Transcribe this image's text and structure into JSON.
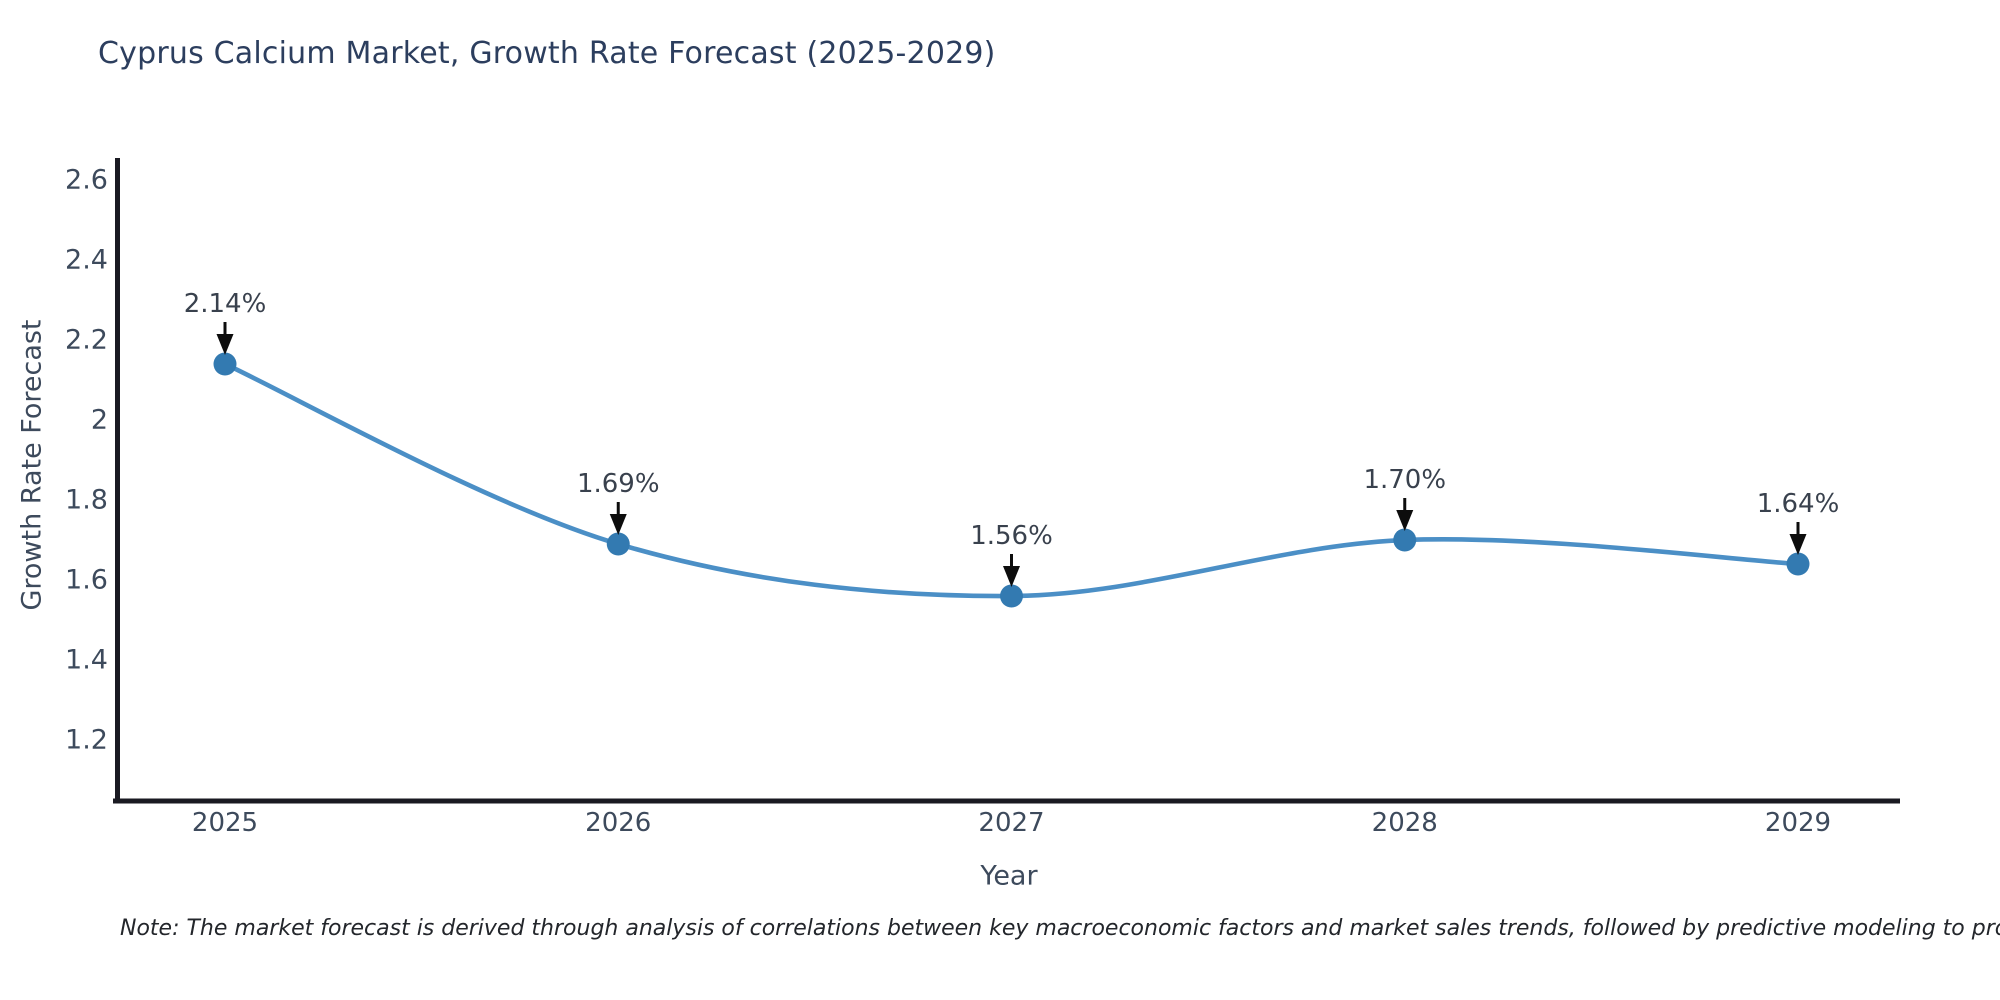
{
  "chart_data": {
    "type": "line",
    "title": "Cyprus Calcium Market, Growth Rate Forecast (2025-2029)",
    "xlabel": "Year",
    "ylabel": "Growth Rate Forecast",
    "x": [
      2025,
      2026,
      2027,
      2028,
      2029
    ],
    "series": [
      {
        "name": "Growth Rate Forecast",
        "values": [
          2.14,
          1.69,
          1.56,
          1.7,
          1.64
        ]
      }
    ],
    "point_labels": [
      "2.14%",
      "1.69%",
      "1.56%",
      "1.70%",
      "1.64%"
    ],
    "xticks": [
      "2025",
      "2026",
      "2027",
      "2028",
      "2029"
    ],
    "yticks": [
      2.6,
      2.4,
      2.2,
      2.0,
      1.8,
      1.6,
      1.4,
      1.2
    ],
    "ylim": [
      1.045,
      2.655
    ],
    "grid": false,
    "legend": false,
    "curve": "spline",
    "annotations": "black down-arrows from percent labels to markers",
    "colors": {
      "line": "#4b8fc6",
      "marker": "#337ab1",
      "arrow": "#0d0d0d",
      "spine": "#1a1a22",
      "title_text": "#2c3e5e",
      "axis_text": "#3d4a5c",
      "annotation_text": "#39414d",
      "note_text": "#23262b",
      "background": "#ffffff"
    }
  },
  "note": "Note: The market forecast is derived through analysis of correlations between key macroeconomic factors and market sales trends, followed by predictive modeling to project future sales"
}
